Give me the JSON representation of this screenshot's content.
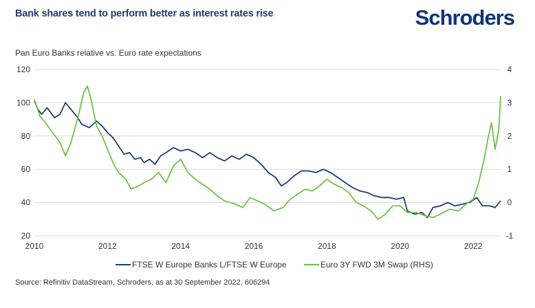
{
  "header": {
    "title": "Bank shares tend to perform better as interest rates rise",
    "logo": "Schroders"
  },
  "footer": {
    "source": "Source: Refinitiv DataStream, Schroders, as at 30 September 2022. 606294"
  },
  "chart_data": {
    "type": "line",
    "title": "Bank shares tend to perform better as interest rates rise",
    "subtitle": "Pan Euro Banks relative vs. Euro rate expectations",
    "xlabel": "",
    "ylabel": "",
    "y2label": "",
    "xlim": [
      2010,
      2022.75
    ],
    "ylim": [
      20,
      120
    ],
    "y2lim": [
      -1,
      4
    ],
    "x_ticks": [
      "2010",
      "2012",
      "2014",
      "2016",
      "2018",
      "2020",
      "2022"
    ],
    "x_tick_values": [
      2010,
      2012,
      2014,
      2016,
      2018,
      2020,
      2022
    ],
    "y_ticks": [
      "20",
      "40",
      "60",
      "80",
      "100",
      "120"
    ],
    "y_tick_values": [
      20,
      40,
      60,
      80,
      100,
      120
    ],
    "y2_ticks": [
      "-1",
      "0",
      "1",
      "2",
      "3",
      "4"
    ],
    "y2_tick_values": [
      -1,
      0,
      1,
      2,
      3,
      4
    ],
    "grid": true,
    "legend_position": "bottom",
    "series": [
      {
        "name": "FTSE W Europe Banks L/FTSE W Europe",
        "axis": "left",
        "color": "#1f3d6e",
        "x": [
          2010.0,
          2010.1,
          2010.2,
          2010.35,
          2010.55,
          2010.7,
          2010.85,
          2011.0,
          2011.15,
          2011.3,
          2011.5,
          2011.7,
          2011.85,
          2012.0,
          2012.15,
          2012.3,
          2012.45,
          2012.6,
          2012.75,
          2012.9,
          2013.0,
          2013.15,
          2013.3,
          2013.45,
          2013.6,
          2013.8,
          2014.0,
          2014.2,
          2014.4,
          2014.6,
          2014.8,
          2015.0,
          2015.2,
          2015.4,
          2015.6,
          2015.8,
          2016.0,
          2016.2,
          2016.4,
          2016.6,
          2016.75,
          2016.9,
          2017.1,
          2017.3,
          2017.5,
          2017.7,
          2017.9,
          2018.1,
          2018.3,
          2018.5,
          2018.7,
          2018.9,
          2019.1,
          2019.3,
          2019.5,
          2019.7,
          2019.9,
          2020.1,
          2020.2,
          2020.4,
          2020.6,
          2020.75,
          2020.9,
          2021.1,
          2021.3,
          2021.5,
          2021.7,
          2021.9,
          2022.1,
          2022.25,
          2022.45,
          2022.6,
          2022.75
        ],
        "values": [
          101,
          96,
          93,
          97,
          91,
          93,
          100,
          96,
          92,
          87,
          85,
          89,
          86,
          82,
          79,
          74,
          69,
          70,
          66,
          67,
          64,
          66,
          63,
          68,
          70,
          73,
          71,
          72,
          70,
          67,
          70,
          67,
          65,
          68,
          66,
          69,
          67,
          63,
          58,
          55,
          50,
          52,
          56,
          59,
          59,
          58,
          60,
          58,
          55,
          52,
          49,
          47,
          46,
          44,
          43,
          43,
          42,
          43,
          35,
          33,
          34,
          31,
          37,
          38,
          40,
          38,
          39,
          40,
          43,
          38,
          38,
          37,
          41
        ]
      },
      {
        "name": "Euro 3Y FWD 3M Swap (RHS)",
        "axis": "right",
        "color": "#6cc24a",
        "x": [
          2010.0,
          2010.15,
          2010.3,
          2010.5,
          2010.7,
          2010.85,
          2011.0,
          2011.2,
          2011.35,
          2011.45,
          2011.55,
          2011.7,
          2011.85,
          2012.0,
          2012.15,
          2012.3,
          2012.5,
          2012.65,
          2012.85,
          2013.0,
          2013.2,
          2013.4,
          2013.6,
          2013.8,
          2014.0,
          2014.2,
          2014.4,
          2014.6,
          2014.8,
          2015.0,
          2015.2,
          2015.5,
          2015.7,
          2015.9,
          2016.1,
          2016.3,
          2016.55,
          2016.8,
          2017.0,
          2017.2,
          2017.4,
          2017.6,
          2017.8,
          2018.0,
          2018.2,
          2018.4,
          2018.6,
          2018.8,
          2019.0,
          2019.2,
          2019.4,
          2019.6,
          2019.8,
          2020.0,
          2020.2,
          2020.45,
          2020.7,
          2020.9,
          2021.1,
          2021.35,
          2021.6,
          2021.8,
          2022.0,
          2022.15,
          2022.3,
          2022.4,
          2022.5,
          2022.6,
          2022.7,
          2022.75
        ],
        "values": [
          3.1,
          2.6,
          2.4,
          2.1,
          1.8,
          1.4,
          1.8,
          2.6,
          3.3,
          3.5,
          3.1,
          2.3,
          2.0,
          1.6,
          1.2,
          0.9,
          0.7,
          0.4,
          0.5,
          0.6,
          0.7,
          0.9,
          0.6,
          1.1,
          1.3,
          0.9,
          0.7,
          0.55,
          0.4,
          0.2,
          0.05,
          -0.05,
          -0.15,
          0.15,
          0.05,
          -0.05,
          -0.25,
          -0.15,
          0.1,
          0.25,
          0.4,
          0.35,
          0.5,
          0.7,
          0.55,
          0.45,
          0.3,
          0.0,
          -0.1,
          -0.25,
          -0.5,
          -0.35,
          -0.1,
          -0.1,
          -0.3,
          -0.3,
          -0.4,
          -0.45,
          -0.35,
          -0.2,
          -0.25,
          -0.05,
          0.1,
          0.6,
          1.3,
          1.9,
          2.4,
          1.6,
          2.2,
          3.2
        ]
      }
    ]
  }
}
